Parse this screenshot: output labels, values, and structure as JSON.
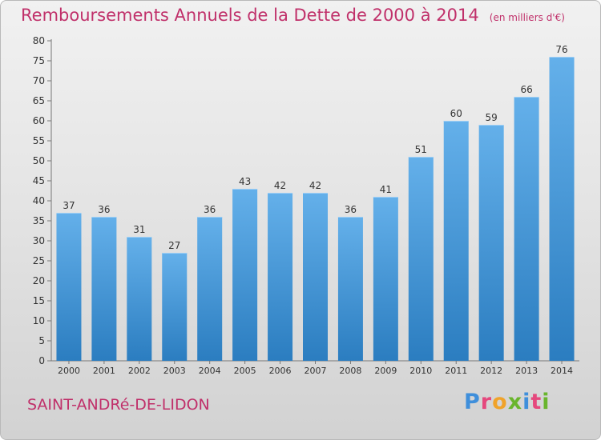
{
  "page": {
    "title": "Remboursements Annuels de la Dette de 2000 à 2014",
    "unit": "(en milliers d'€)",
    "commune": "SAINT-ANDRé-DE-LIDON",
    "logo": "Proxiti"
  },
  "colors": {
    "title": "#c0306a",
    "bar_light": "#64b0ea",
    "bar_dark": "#2b7dc0",
    "logo_letters": [
      "#3f8fdb",
      "#e5487d",
      "#f0a32a",
      "#69b52c",
      "#3f8fdb",
      "#e5487d",
      "#69b52c"
    ]
  },
  "chart_data": {
    "type": "bar",
    "title": "Remboursements Annuels de la Dette de 2000 à 2014",
    "ylabel": "en milliers d'€",
    "xlabel": "",
    "categories": [
      "2000",
      "2001",
      "2002",
      "2003",
      "2004",
      "2005",
      "2006",
      "2007",
      "2008",
      "2009",
      "2010",
      "2011",
      "2012",
      "2013",
      "2014"
    ],
    "values": [
      37,
      36,
      31,
      27,
      36,
      43,
      42,
      42,
      36,
      41,
      51,
      60,
      59,
      66,
      76
    ],
    "ylim": [
      0,
      80
    ],
    "yticks": [
      0,
      5,
      10,
      15,
      20,
      25,
      30,
      35,
      40,
      45,
      50,
      55,
      60,
      65,
      70,
      75,
      80
    ],
    "grid": false
  }
}
